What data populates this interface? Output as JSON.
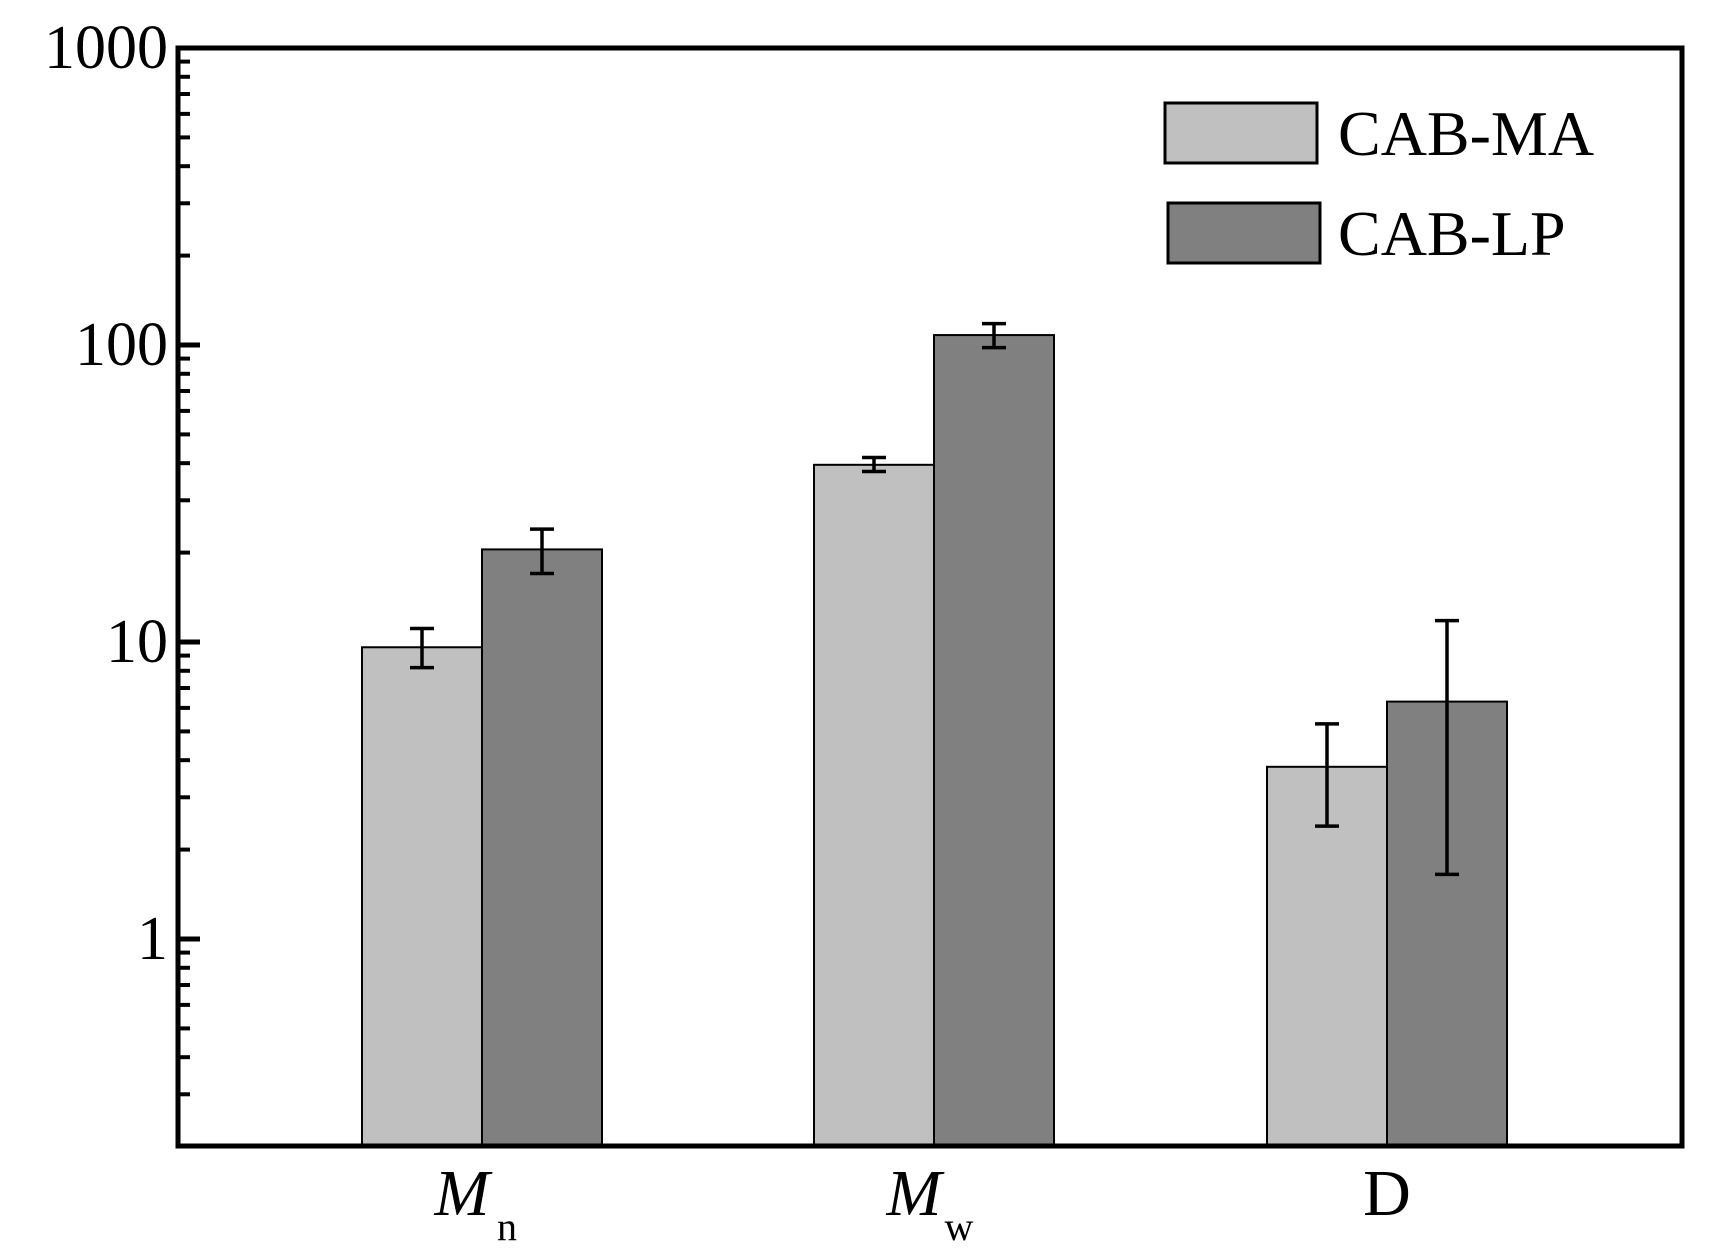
{
  "chart_data": {
    "type": "bar",
    "yscale": "log",
    "ylim": [
      0.2,
      1000
    ],
    "yticks": [
      1,
      10,
      100,
      1000
    ],
    "ytick_labels": [
      "1",
      "10",
      "100",
      "1000"
    ],
    "categories": [
      {
        "main": "M",
        "sub": "n",
        "italic": true
      },
      {
        "main": "M",
        "sub": "w",
        "italic": true
      },
      {
        "main": "D",
        "sub": "",
        "italic": false
      }
    ],
    "series": [
      {
        "name": "CAB-MA",
        "color": "#c0c0c0",
        "values": [
          9.6,
          39.5,
          3.8
        ],
        "err_low": [
          8.2,
          37.5,
          2.4
        ],
        "err_high": [
          11.1,
          41.8,
          5.3
        ]
      },
      {
        "name": "CAB-LP",
        "color": "#808080",
        "values": [
          20.5,
          108,
          6.3
        ],
        "err_low": [
          17.0,
          98,
          1.65
        ],
        "err_high": [
          24.0,
          118,
          11.8
        ]
      }
    ],
    "xlabel": "",
    "ylabel": "",
    "grid": false,
    "legend_position": "top-right"
  }
}
